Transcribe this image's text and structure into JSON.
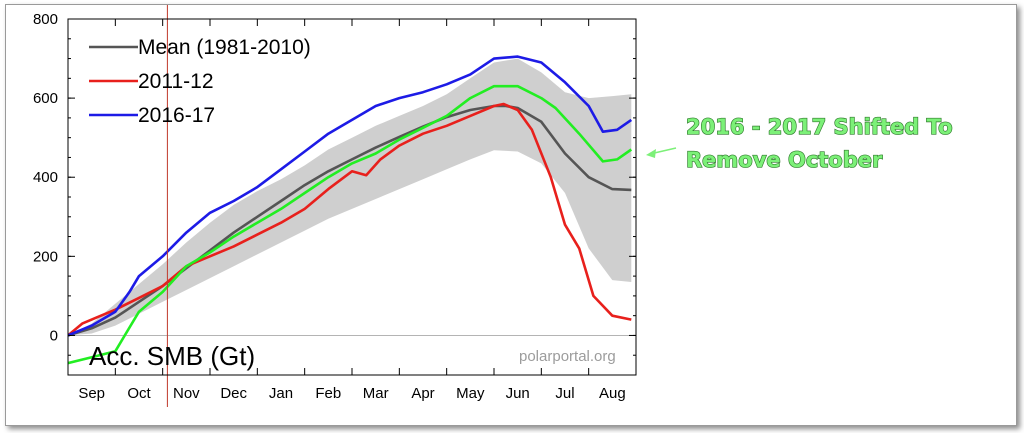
{
  "chart_data": {
    "type": "line",
    "ylabel": "Acc. SMB (Gt)",
    "credit": "polarportal.org",
    "x_ticks": [
      "Sep",
      "Oct",
      "Nov",
      "Dec",
      "Jan",
      "Feb",
      "Mar",
      "Apr",
      "May",
      "Jun",
      "Jul",
      "Aug"
    ],
    "xlim": [
      0,
      12
    ],
    "ylim": [
      -100,
      800
    ],
    "y_ticks": [
      0,
      200,
      400,
      600,
      800
    ],
    "x_unit": "months since 1 Sep",
    "marker_line_x": 2.1,
    "band": {
      "x": [
        0,
        0.5,
        1,
        1.5,
        2,
        2.5,
        3,
        3.5,
        4,
        4.5,
        5,
        5.5,
        6,
        6.5,
        7,
        7.5,
        8,
        8.5,
        9,
        9.5,
        10,
        10.5,
        11,
        11.5,
        11.9
      ],
      "upper": [
        0,
        30,
        80,
        130,
        180,
        235,
        285,
        330,
        365,
        395,
        430,
        470,
        500,
        530,
        555,
        580,
        610,
        650,
        690,
        700,
        665,
        615,
        600,
        605,
        610
      ],
      "lower": [
        0,
        5,
        25,
        55,
        85,
        115,
        145,
        175,
        205,
        235,
        265,
        295,
        320,
        345,
        370,
        395,
        420,
        445,
        468,
        465,
        435,
        360,
        220,
        140,
        135
      ]
    },
    "series": [
      {
        "name": "Mean (1981-2010)",
        "color": "#555555",
        "x": [
          0,
          0.5,
          1,
          1.5,
          2,
          2.5,
          3,
          3.5,
          4,
          4.5,
          5,
          5.5,
          6,
          6.5,
          7,
          7.5,
          8,
          8.5,
          9,
          9.25,
          9.5,
          10,
          10.5,
          11,
          11.5,
          11.9
        ],
        "y": [
          0,
          18,
          45,
          85,
          125,
          170,
          215,
          260,
          300,
          340,
          380,
          415,
          445,
          475,
          502,
          528,
          552,
          570,
          580,
          580,
          575,
          540,
          460,
          400,
          370,
          368
        ]
      },
      {
        "name": "2011-12",
        "color": "#e8201c",
        "x": [
          0,
          0.3,
          0.6,
          1,
          1.5,
          2,
          2.5,
          3,
          3.5,
          4,
          4.5,
          5,
          5.5,
          6,
          6.3,
          6.6,
          7,
          7.5,
          8,
          8.5,
          9,
          9.2,
          9.5,
          9.8,
          10.2,
          10.5,
          10.8,
          11.1,
          11.5,
          11.9
        ],
        "y": [
          0,
          30,
          45,
          65,
          95,
          125,
          175,
          200,
          225,
          255,
          285,
          320,
          370,
          415,
          405,
          445,
          480,
          510,
          530,
          555,
          580,
          585,
          570,
          520,
          400,
          280,
          220,
          100,
          50,
          40
        ]
      },
      {
        "name": "2016-17",
        "color": "#1d1be6",
        "x": [
          0,
          0.5,
          1,
          1.3,
          1.5,
          2,
          2.5,
          3,
          3.5,
          4,
          4.5,
          5,
          5.5,
          6,
          6.5,
          7,
          7.5,
          8,
          8.5,
          9,
          9.5,
          10,
          10.5,
          11,
          11.3,
          11.6,
          11.9
        ],
        "y": [
          0,
          25,
          60,
          110,
          150,
          200,
          260,
          310,
          340,
          375,
          420,
          465,
          510,
          545,
          580,
          600,
          615,
          635,
          660,
          700,
          705,
          690,
          640,
          580,
          515,
          520,
          545
        ]
      },
      {
        "name": "2016-17 shifted",
        "color": "#22ee22",
        "x": [
          0,
          0.5,
          1,
          1.3,
          1.5,
          2,
          2.5,
          3,
          3.5,
          4,
          4.5,
          5,
          5.5,
          6,
          6.5,
          7,
          7.5,
          8,
          8.5,
          9,
          9.5,
          10,
          10.3,
          10.8,
          11.3,
          11.6,
          11.9
        ],
        "y": [
          -70,
          -55,
          -40,
          20,
          60,
          110,
          175,
          210,
          250,
          285,
          320,
          360,
          400,
          435,
          460,
          495,
          525,
          555,
          600,
          630,
          630,
          600,
          575,
          510,
          440,
          445,
          470
        ]
      }
    ],
    "legend": [
      "Mean (1981-2010)",
      "2011-12",
      "2016-17"
    ],
    "annotation": {
      "lines": [
        "2016 - 2017 Shifted To",
        "Remove October"
      ],
      "color": "#7cf078"
    }
  }
}
